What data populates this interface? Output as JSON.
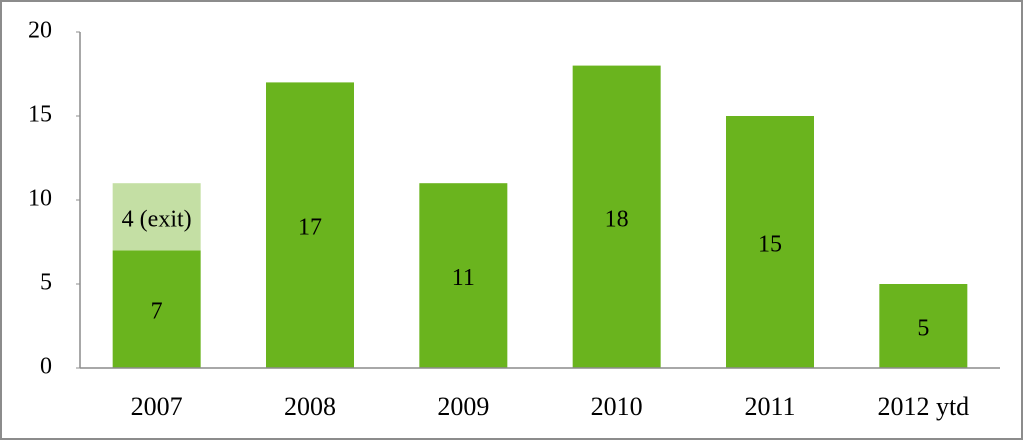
{
  "chart_data": {
    "type": "stacked_bar",
    "categories": [
      "2007",
      "2008",
      "2009",
      "2010",
      "2011",
      "2012 ytd"
    ],
    "series": [
      {
        "color": "#6ab41e",
        "values": [
          7,
          17,
          11,
          18,
          15,
          5
        ]
      },
      {
        "color": "#c4dfa4",
        "values": [
          4,
          null,
          null,
          null,
          null,
          null
        ],
        "value_labels": [
          "4 (exit)",
          null,
          null,
          null,
          null,
          null
        ]
      }
    ],
    "ylim": [
      0,
      20
    ],
    "yticks": [
      0,
      5,
      10,
      15,
      20
    ],
    "grid": false
  }
}
